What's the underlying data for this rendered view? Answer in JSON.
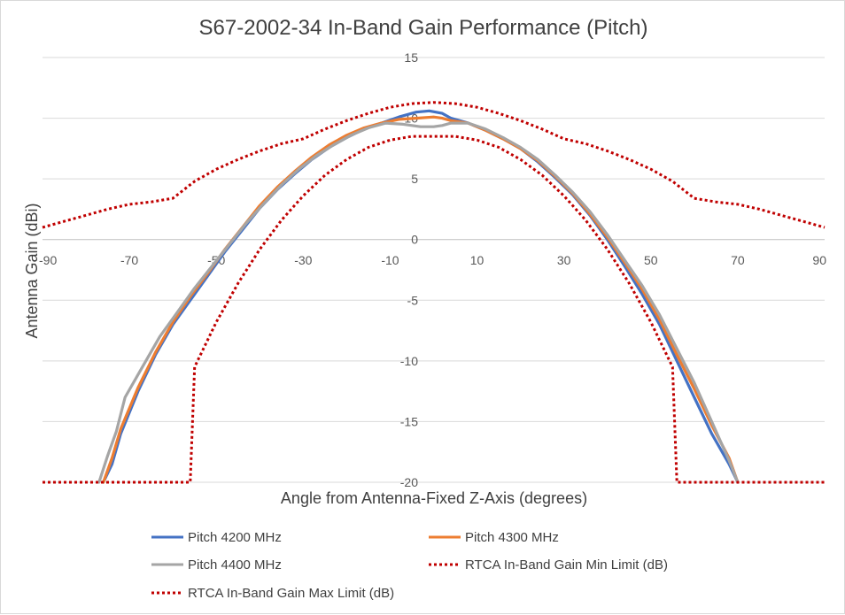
{
  "chart_data": {
    "type": "line",
    "title": "S67-2002-34 In-Band Gain Performance (Pitch)",
    "xlabel": "Angle from Antenna-Fixed Z-Axis (degrees)",
    "ylabel": "Antenna Gain (dBi)",
    "xlim": [
      -90,
      90
    ],
    "ylim": [
      -20,
      15
    ],
    "x_ticks": [
      -90,
      -70,
      -50,
      -30,
      -10,
      10,
      30,
      50,
      70,
      90
    ],
    "y_ticks": [
      15,
      10,
      5,
      0,
      -5,
      -10,
      -15,
      -20
    ],
    "grid": true,
    "legend_position": "bottom",
    "series": [
      {
        "name": "Pitch 4200 MHz",
        "color": "#4472c4",
        "style": "solid",
        "points": [
          [
            -76,
            -20
          ],
          [
            -74,
            -18.5
          ],
          [
            -72,
            -16
          ],
          [
            -68,
            -12.5
          ],
          [
            -64,
            -9.5
          ],
          [
            -60,
            -7
          ],
          [
            -56,
            -5
          ],
          [
            -52,
            -3
          ],
          [
            -48,
            -1
          ],
          [
            -44,
            0.8
          ],
          [
            -40,
            2.6
          ],
          [
            -36,
            4.1
          ],
          [
            -32,
            5.4
          ],
          [
            -28,
            6.6
          ],
          [
            -24,
            7.6
          ],
          [
            -20,
            8.4
          ],
          [
            -16,
            9.1
          ],
          [
            -12,
            9.6
          ],
          [
            -8,
            10.1
          ],
          [
            -4,
            10.5
          ],
          [
            -1,
            10.6
          ],
          [
            2,
            10.4
          ],
          [
            4,
            10.0
          ],
          [
            8,
            9.6
          ],
          [
            12,
            9.0
          ],
          [
            16,
            8.3
          ],
          [
            20,
            7.5
          ],
          [
            24,
            6.4
          ],
          [
            28,
            5.1
          ],
          [
            32,
            3.7
          ],
          [
            36,
            2.0
          ],
          [
            40,
            0
          ],
          [
            44,
            -2.2
          ],
          [
            48,
            -4.5
          ],
          [
            52,
            -7
          ],
          [
            56,
            -10
          ],
          [
            60,
            -13
          ],
          [
            64,
            -16
          ],
          [
            68,
            -18.5
          ],
          [
            70,
            -20
          ]
        ]
      },
      {
        "name": "Pitch 4300 MHz",
        "color": "#ed7d31",
        "style": "solid",
        "points": [
          [
            -76,
            -20
          ],
          [
            -74,
            -18
          ],
          [
            -72,
            -15.6
          ],
          [
            -68,
            -12.2
          ],
          [
            -64,
            -9.3
          ],
          [
            -60,
            -6.8
          ],
          [
            -56,
            -4.7
          ],
          [
            -52,
            -2.8
          ],
          [
            -48,
            -0.8
          ],
          [
            -44,
            1
          ],
          [
            -40,
            2.8
          ],
          [
            -36,
            4.3
          ],
          [
            -32,
            5.6
          ],
          [
            -28,
            6.8
          ],
          [
            -24,
            7.8
          ],
          [
            -20,
            8.6
          ],
          [
            -16,
            9.2
          ],
          [
            -12,
            9.6
          ],
          [
            -8,
            9.9
          ],
          [
            -4,
            10.0
          ],
          [
            0,
            10.1
          ],
          [
            2,
            10.0
          ],
          [
            4,
            9.8
          ],
          [
            8,
            9.6
          ],
          [
            12,
            9.0
          ],
          [
            16,
            8.3
          ],
          [
            20,
            7.5
          ],
          [
            24,
            6.5
          ],
          [
            28,
            5.2
          ],
          [
            32,
            3.8
          ],
          [
            36,
            2.1
          ],
          [
            40,
            0.2
          ],
          [
            44,
            -1.9
          ],
          [
            48,
            -4.1
          ],
          [
            52,
            -6.6
          ],
          [
            56,
            -9.5
          ],
          [
            60,
            -12.3
          ],
          [
            64,
            -15.3
          ],
          [
            68,
            -18
          ],
          [
            70,
            -20
          ]
        ]
      },
      {
        "name": "Pitch 4400 MHz",
        "color": "#a5a5a5",
        "style": "solid",
        "points": [
          [
            -77,
            -20
          ],
          [
            -75,
            -17.8
          ],
          [
            -73,
            -15.8
          ],
          [
            -71,
            -13
          ],
          [
            -67,
            -10.5
          ],
          [
            -63,
            -8
          ],
          [
            -59,
            -6
          ],
          [
            -55,
            -4
          ],
          [
            -51,
            -2.2
          ],
          [
            -47,
            -0.4
          ],
          [
            -43,
            1.4
          ],
          [
            -39,
            3
          ],
          [
            -35,
            4.5
          ],
          [
            -31,
            5.8
          ],
          [
            -27,
            6.9
          ],
          [
            -23,
            7.8
          ],
          [
            -19,
            8.6
          ],
          [
            -15,
            9.2
          ],
          [
            -11,
            9.6
          ],
          [
            -7,
            9.5
          ],
          [
            -3,
            9.3
          ],
          [
            0,
            9.3
          ],
          [
            2,
            9.4
          ],
          [
            4,
            9.6
          ],
          [
            8,
            9.6
          ],
          [
            12,
            9.1
          ],
          [
            16,
            8.4
          ],
          [
            20,
            7.6
          ],
          [
            24,
            6.6
          ],
          [
            28,
            5.3
          ],
          [
            32,
            3.9
          ],
          [
            36,
            2.3
          ],
          [
            40,
            0.4
          ],
          [
            44,
            -1.7
          ],
          [
            48,
            -3.8
          ],
          [
            52,
            -6.2
          ],
          [
            56,
            -9
          ],
          [
            60,
            -11.8
          ],
          [
            64,
            -15
          ],
          [
            68,
            -18.2
          ],
          [
            70,
            -20
          ]
        ]
      },
      {
        "name": "RTCA In-Band Gain Min Limit (dB)",
        "color": "#c00000",
        "style": "dotted",
        "points": [
          [
            -90,
            -20
          ],
          [
            -56,
            -20
          ],
          [
            -55,
            -10.5
          ],
          [
            -50,
            -6.8
          ],
          [
            -45,
            -3.6
          ],
          [
            -40,
            -0.8
          ],
          [
            -35,
            1.6
          ],
          [
            -30,
            3.6
          ],
          [
            -25,
            5.3
          ],
          [
            -20,
            6.6
          ],
          [
            -15,
            7.6
          ],
          [
            -10,
            8.2
          ],
          [
            -5,
            8.5
          ],
          [
            0,
            8.5
          ],
          [
            5,
            8.5
          ],
          [
            10,
            8.2
          ],
          [
            15,
            7.6
          ],
          [
            20,
            6.6
          ],
          [
            25,
            5.3
          ],
          [
            30,
            3.6
          ],
          [
            35,
            1.6
          ],
          [
            40,
            -0.8
          ],
          [
            45,
            -3.6
          ],
          [
            50,
            -6.8
          ],
          [
            55,
            -10.5
          ],
          [
            56,
            -20
          ],
          [
            90,
            -20
          ]
        ]
      },
      {
        "name": "RTCA In-Band Gain Max Limit (dB)",
        "color": "#c00000",
        "style": "dotted",
        "points": [
          [
            -90,
            1
          ],
          [
            -85,
            1.5
          ],
          [
            -80,
            2
          ],
          [
            -75,
            2.5
          ],
          [
            -70,
            2.9
          ],
          [
            -65,
            3.1
          ],
          [
            -60,
            3.4
          ],
          [
            -55,
            4.8
          ],
          [
            -50,
            5.8
          ],
          [
            -45,
            6.6
          ],
          [
            -40,
            7.3
          ],
          [
            -35,
            7.9
          ],
          [
            -30,
            8.3
          ],
          [
            -25,
            9.1
          ],
          [
            -20,
            9.8
          ],
          [
            -15,
            10.4
          ],
          [
            -10,
            10.9
          ],
          [
            -5,
            11.2
          ],
          [
            0,
            11.3
          ],
          [
            5,
            11.2
          ],
          [
            10,
            10.9
          ],
          [
            15,
            10.4
          ],
          [
            20,
            9.8
          ],
          [
            25,
            9.1
          ],
          [
            30,
            8.3
          ],
          [
            35,
            7.9
          ],
          [
            40,
            7.3
          ],
          [
            45,
            6.6
          ],
          [
            50,
            5.8
          ],
          [
            55,
            4.8
          ],
          [
            60,
            3.4
          ],
          [
            65,
            3.1
          ],
          [
            70,
            2.9
          ],
          [
            75,
            2.5
          ],
          [
            80,
            2
          ],
          [
            85,
            1.5
          ],
          [
            90,
            1
          ]
        ]
      }
    ]
  }
}
